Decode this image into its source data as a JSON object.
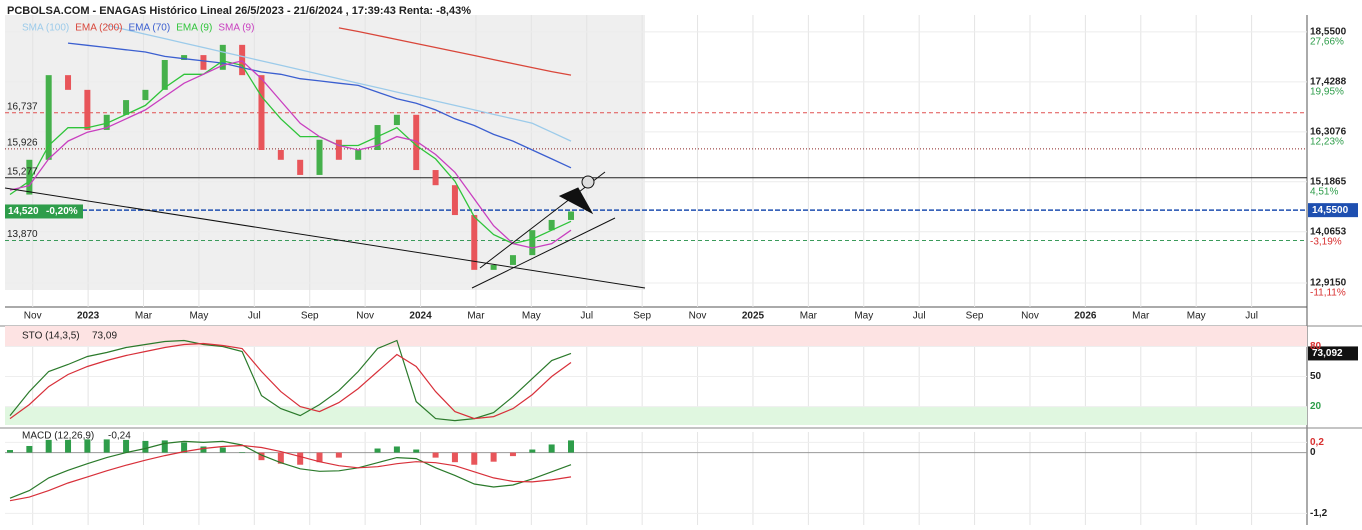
{
  "title": "PCBOLSA.COM - ENAGAS Histórico Lineal 26/5/2023 - 21/6/2024 , 17:39:43 Renta: -8,43%",
  "chart_data": [
    {
      "type": "candlestick",
      "values": [
        14.9,
        15.68,
        17.58,
        17.25,
        16.35,
        16.69,
        17.02,
        17.25,
        17.92,
        18.03,
        17.7,
        18.26,
        17.58,
        15.9,
        15.68,
        15.34,
        16.13,
        15.68,
        15.9,
        16.46,
        16.69,
        15.45,
        15.11,
        14.44,
        13.21,
        13.32,
        13.54,
        14.1,
        14.33,
        14.52
      ],
      "up_color": "#45b04b",
      "down_color": "#e8555a",
      "series": [
        {
          "name": "SMA (100)",
          "color": "#9ccbea",
          "values": [
            null,
            null,
            null,
            null,
            null,
            18.7,
            18.6,
            18.5,
            18.4,
            18.3,
            18.2,
            18.1,
            18.0,
            17.9,
            17.8,
            17.7,
            17.6,
            17.5,
            17.4,
            17.3,
            17.2,
            17.1,
            17.0,
            16.9,
            16.8,
            16.7,
            16.6,
            16.5,
            16.3,
            16.1
          ]
        },
        {
          "name": "EMA (200)",
          "color": "#d9463a",
          "values": [
            null,
            null,
            null,
            null,
            null,
            null,
            null,
            null,
            null,
            null,
            null,
            null,
            null,
            null,
            null,
            null,
            null,
            18.64,
            18.56,
            18.47,
            18.38,
            18.29,
            18.2,
            18.11,
            18.02,
            17.93,
            17.84,
            17.75,
            17.66,
            17.58
          ]
        },
        {
          "name": "EMA (70)",
          "color": "#3b5fd0",
          "values": [
            null,
            null,
            null,
            18.3,
            18.25,
            18.2,
            18.15,
            18.1,
            18.0,
            17.95,
            17.9,
            17.85,
            17.75,
            17.65,
            17.6,
            17.5,
            17.45,
            17.4,
            17.35,
            17.2,
            17.05,
            16.95,
            16.8,
            16.6,
            16.45,
            16.25,
            16.1,
            15.9,
            15.7,
            15.5
          ]
        },
        {
          "name": "EMA (9)",
          "color": "#2fc43a",
          "values": [
            14.9,
            15.2,
            16.0,
            16.4,
            16.4,
            16.5,
            16.7,
            16.9,
            17.3,
            17.6,
            17.6,
            17.9,
            17.8,
            17.1,
            16.6,
            16.2,
            16.2,
            16.0,
            16.0,
            16.2,
            16.4,
            16.0,
            15.7,
            15.2,
            14.4,
            14.0,
            13.8,
            13.9,
            14.1,
            14.3
          ]
        },
        {
          "name": "SMA (9)",
          "color": "#c93fc0",
          "values": [
            15.0,
            15.1,
            15.7,
            16.1,
            16.3,
            16.4,
            16.6,
            16.8,
            17.1,
            17.4,
            17.6,
            17.8,
            17.9,
            17.5,
            17.0,
            16.5,
            16.2,
            16.0,
            15.9,
            16.0,
            16.2,
            16.1,
            15.8,
            15.4,
            14.8,
            14.2,
            13.8,
            13.7,
            13.8,
            14.1
          ]
        }
      ],
      "ylim": [
        12.376,
        18.93
      ],
      "yticks": [
        {
          "value": 18.55,
          "label": "18,5500"
        },
        {
          "value": 17.4288,
          "label": "17,4288"
        },
        {
          "value": 16.3076,
          "label": "16,3076"
        },
        {
          "value": 15.1865,
          "label": "15,1865"
        },
        {
          "value": 14.0653,
          "label": "14,0653"
        },
        {
          "value": 12.915,
          "label": "12,9150"
        }
      ],
      "ytick_returns": [
        {
          "value": 27.66,
          "label": "27,66%"
        },
        {
          "value": 19.95,
          "label": "19,95%"
        },
        {
          "value": 12.23,
          "label": "12,23%"
        },
        {
          "value": 4.51,
          "label": "4,51%"
        },
        {
          "value": -3.19,
          "label": "-3,19%"
        },
        {
          "value": -11.11,
          "label": "-11,11%"
        }
      ],
      "levels": [
        {
          "value": 16.737,
          "label": "16,737",
          "color": "#e05050",
          "style": "dashed"
        },
        {
          "value": 15.926,
          "label": "15,926",
          "color": "#8b2020",
          "style": "dotted"
        },
        {
          "value": 15.277,
          "label": "15,277",
          "color": "#222222",
          "style": "solid"
        },
        {
          "value": 13.87,
          "label": "13,870",
          "color": "#3a9a5a",
          "style": "dashed"
        }
      ],
      "last": {
        "value": 14.55,
        "label": "14,5500",
        "color": "#1e4fb0"
      },
      "close_label": {
        "value": 14.52,
        "label": "14,520",
        "change": {
          "value": -0.2,
          "label": "-0,20%"
        },
        "color": "#2e9d4a"
      },
      "xlim": [
        "2022-10",
        "2026-09"
      ],
      "xticks": [
        {
          "value": "2022-11",
          "label": "Nov"
        },
        {
          "value": "2023-01",
          "label": "2023"
        },
        {
          "value": "2023-03",
          "label": "Mar"
        },
        {
          "value": "2023-05",
          "label": "May"
        },
        {
          "value": "2023-07",
          "label": "Jul"
        },
        {
          "value": "2023-09",
          "label": "Sep"
        },
        {
          "value": "2023-11",
          "label": "Nov"
        },
        {
          "value": "2024-01",
          "label": "2024"
        },
        {
          "value": "2024-03",
          "label": "Mar"
        },
        {
          "value": "2024-05",
          "label": "May"
        },
        {
          "value": "2024-07",
          "label": "Jul"
        },
        {
          "value": "2024-09",
          "label": "Sep"
        },
        {
          "value": "2024-11",
          "label": "Nov"
        },
        {
          "value": "2025-01",
          "label": "2025"
        },
        {
          "value": "2025-03",
          "label": "Mar"
        },
        {
          "value": "2025-05",
          "label": "May"
        },
        {
          "value": "2025-07",
          "label": "Jul"
        },
        {
          "value": "2025-09",
          "label": "Sep"
        },
        {
          "value": "2025-11",
          "label": "Nov"
        },
        {
          "value": "2026-01",
          "label": "2026"
        },
        {
          "value": "2026-03",
          "label": "Mar"
        },
        {
          "value": "2026-05",
          "label": "May"
        },
        {
          "value": "2026-07",
          "label": "Jul"
        }
      ]
    },
    {
      "type": "line",
      "title": "STO (14,3,5)",
      "value_label": {
        "value": 73.09,
        "label": "73,09"
      },
      "series": [
        {
          "color": "#2b7a2b",
          "values": [
            11,
            35,
            55,
            62,
            70,
            74,
            79,
            82,
            85,
            86,
            82,
            80,
            75,
            31,
            18,
            11,
            22,
            36,
            55,
            78,
            86,
            25,
            8,
            6,
            8,
            14,
            30,
            48,
            66,
            73.09
          ]
        },
        {
          "color": "#d8303a",
          "values": [
            8,
            22,
            40,
            52,
            60,
            66,
            71,
            75,
            79,
            82,
            83,
            81,
            78,
            55,
            35,
            20,
            15,
            24,
            38,
            55,
            72,
            60,
            35,
            15,
            8,
            10,
            18,
            32,
            50,
            64
          ]
        }
      ],
      "ylim": [
        1.6,
        96.5
      ],
      "yticks": [
        80,
        50,
        20
      ],
      "last": {
        "value": 73.092,
        "label": "73,092",
        "color": "#111111"
      }
    },
    {
      "type": "macd",
      "title": "MACD (12,26,9)",
      "value_label": {
        "value": -0.24,
        "label": "-0,24"
      },
      "series": [
        {
          "color": "#2b7a2b",
          "values": [
            -0.9,
            -0.75,
            -0.5,
            -0.35,
            -0.22,
            -0.1,
            0.0,
            0.08,
            0.18,
            0.22,
            0.2,
            0.22,
            0.15,
            -0.05,
            -0.2,
            -0.32,
            -0.37,
            -0.36,
            -0.3,
            -0.2,
            -0.1,
            -0.12,
            -0.3,
            -0.45,
            -0.62,
            -0.68,
            -0.64,
            -0.52,
            -0.38,
            -0.24
          ]
        },
        {
          "color": "#d8303a",
          "values": [
            -0.95,
            -0.88,
            -0.75,
            -0.6,
            -0.48,
            -0.36,
            -0.25,
            -0.15,
            -0.06,
            0.02,
            0.08,
            0.12,
            0.14,
            0.1,
            0.02,
            -0.08,
            -0.18,
            -0.26,
            -0.3,
            -0.28,
            -0.22,
            -0.18,
            -0.2,
            -0.26,
            -0.38,
            -0.5,
            -0.57,
            -0.58,
            -0.54,
            -0.48
          ]
        }
      ],
      "histogram": [
        0.05,
        0.13,
        0.25,
        0.25,
        0.26,
        0.26,
        0.25,
        0.23,
        0.24,
        0.2,
        0.12,
        0.1,
        0.01,
        -0.15,
        -0.22,
        -0.24,
        -0.19,
        -0.1,
        0,
        0.08,
        0.12,
        0.06,
        -0.1,
        -0.19,
        -0.24,
        -0.18,
        -0.07,
        0.06,
        0.16,
        0.24
      ],
      "up_color": "#2e9d4a",
      "down_color": "#e8555a",
      "ylim": [
        -1.43,
        0.406
      ],
      "yticks": [
        {
          "value": 0.2,
          "label": "0,2"
        },
        0,
        {
          "value": -1.2,
          "label": "-1,2"
        }
      ]
    }
  ]
}
